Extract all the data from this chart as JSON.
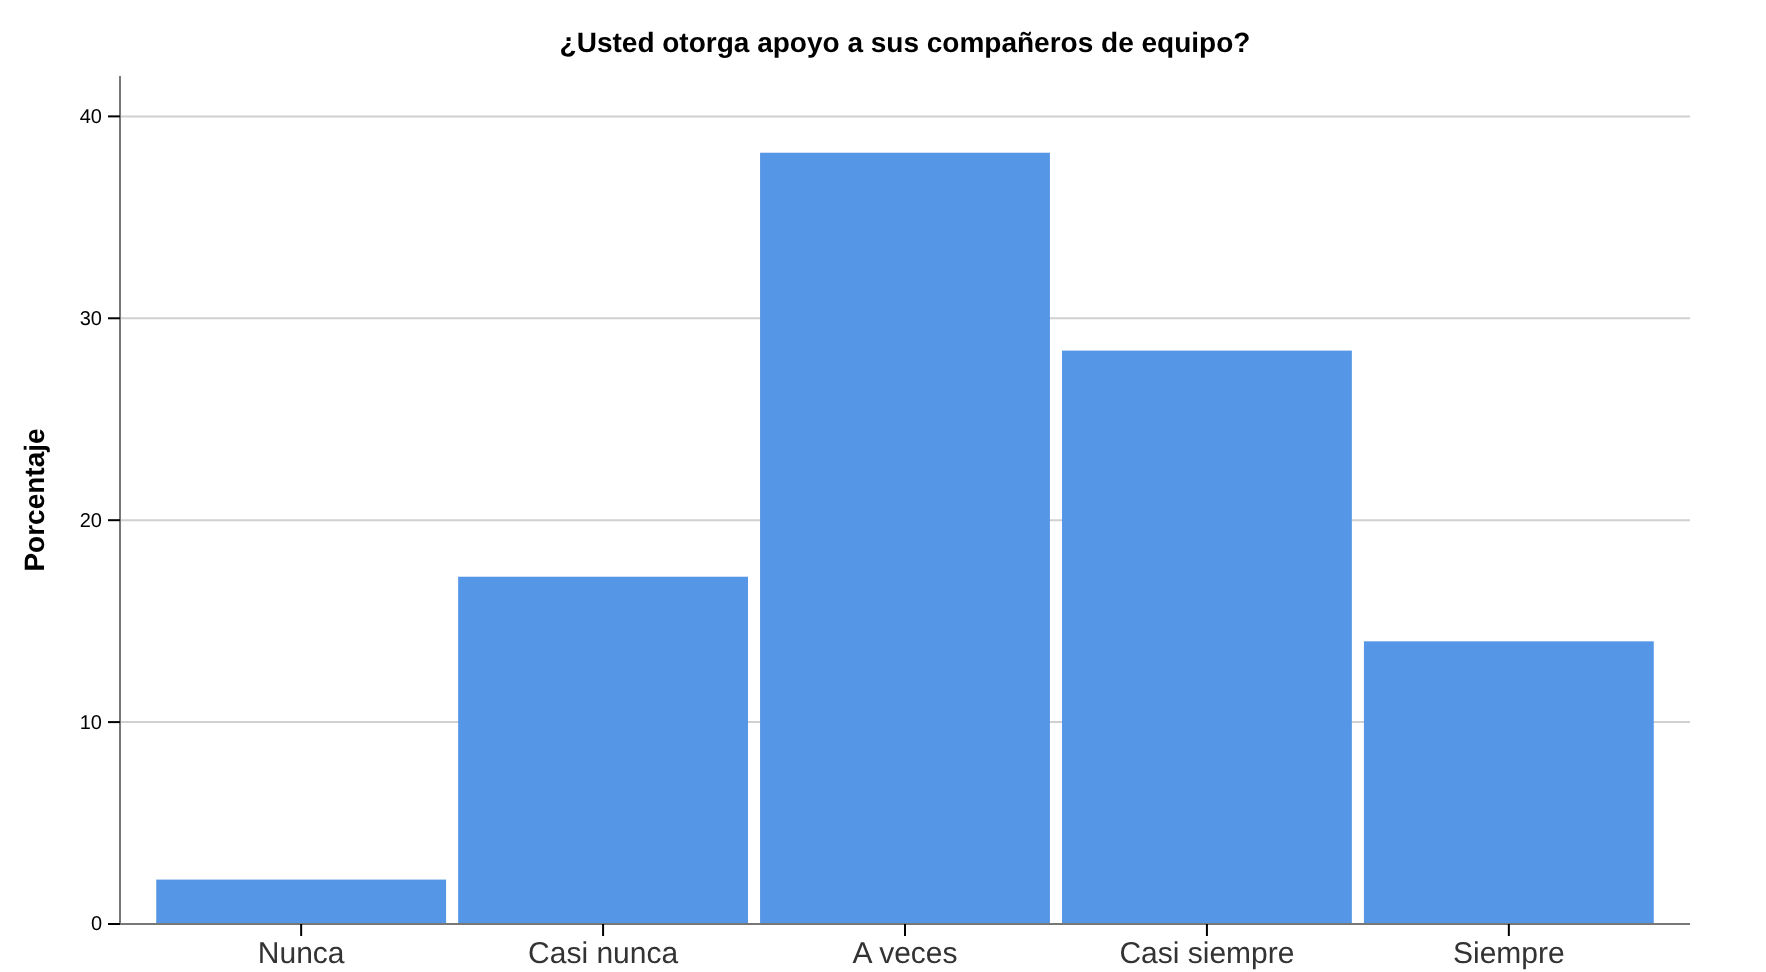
{
  "chart_data": {
    "type": "bar",
    "title": "¿Usted otorga apoyo a sus compañeros de equipo?",
    "ylabel": "Porcentaje",
    "categories": [
      "Nunca",
      "Casi nunca",
      "A veces",
      "Casi siempre",
      "Siempre"
    ],
    "values": [
      2.2,
      17.2,
      38.2,
      28.4,
      14.0
    ],
    "color": "#5596e6",
    "ylim": [
      0,
      42
    ],
    "yticks": [
      0,
      10,
      20,
      30,
      40
    ],
    "grid": "y"
  }
}
